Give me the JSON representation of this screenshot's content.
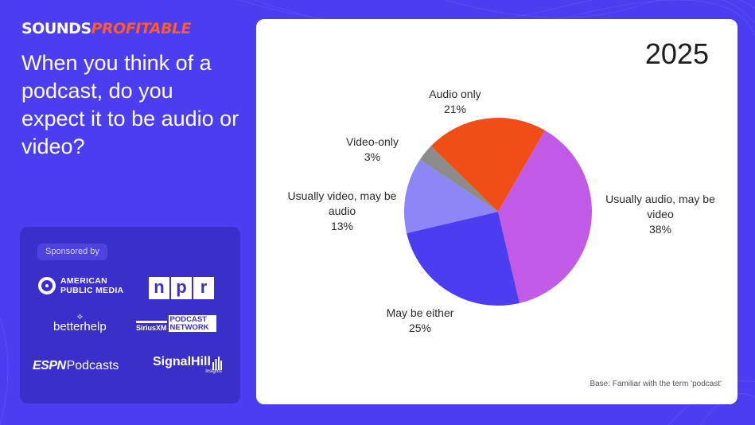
{
  "brand": {
    "part1": "SOUNDS",
    "part2": "PROFITABLE"
  },
  "question": "When you think of a podcast, do you expect it to be audio or video?",
  "sponsors": {
    "label": "Sponsored by",
    "apm": "AMERICAN PUBLIC MEDIA",
    "npr": [
      "n",
      "p",
      "r"
    ],
    "betterhelp": "betterhelp",
    "siriusxm": "SiriusXM",
    "siriusxm_network": "PODCAST NETWORK",
    "espn_a": "ESPN",
    "espn_b": "Podcasts",
    "signalhill": "SignalHill",
    "signalhill_sub": "Insights"
  },
  "chart_data": {
    "type": "pie",
    "title": "2025",
    "slices": [
      {
        "name": "Usually audio, may be video",
        "value": 38,
        "label": "38%",
        "color": "#c25ae8"
      },
      {
        "name": "May be either",
        "value": 25,
        "label": "25%",
        "color": "#4b3df0"
      },
      {
        "name": "Usually video, may be audio",
        "value": 13,
        "label": "13%",
        "color": "#8c86f6"
      },
      {
        "name": "Video-only",
        "value": 3,
        "label": "3%",
        "color": "#8c8c8c"
      },
      {
        "name": "Audio only",
        "value": 21,
        "label": "21%",
        "color": "#f14e17"
      }
    ],
    "note": "Base: Familiar with the term 'podcast'"
  }
}
